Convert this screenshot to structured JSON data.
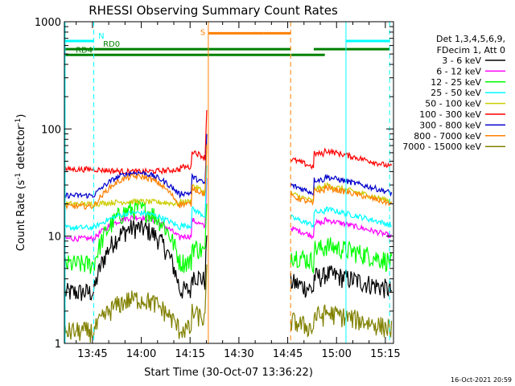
{
  "chart_data": {
    "type": "line",
    "title": "RHESSI Observing Summary Count Rates",
    "xlabel": "Start Time (30-Oct-07 13:36:22)",
    "ylabel_main": "Count Rate (s",
    "ylabel_sup1": "-1",
    "ylabel_mid": " detector",
    "ylabel_sup2": "-1",
    "ylabel_end": ")",
    "y_scale": "log",
    "ylim": [
      1,
      1000
    ],
    "xlim_minutes": [
      36.37,
      137.5
    ],
    "x_tick_labels": [
      {
        "label": "13:45",
        "minute": 45
      },
      {
        "label": "14:00",
        "minute": 60
      },
      {
        "label": "14:15",
        "minute": 75
      },
      {
        "label": "14:30",
        "minute": 90
      },
      {
        "label": "14:45",
        "minute": 105
      },
      {
        "label": "15:00",
        "minute": 120
      },
      {
        "label": "15:15",
        "minute": 135
      }
    ],
    "y_tick_labels": [
      {
        "label": "1",
        "value": 1
      },
      {
        "label": "10",
        "value": 10
      },
      {
        "label": "100",
        "value": 100
      },
      {
        "label": "1000",
        "value": 1000
      }
    ],
    "legend_header": [
      "Det 1,3,4,5,6,9,",
      "FDecim 1, Att 0"
    ],
    "legend_placement": "right",
    "timestamp": "16-Oct-2021 20:59",
    "series": [
      {
        "name": "3 - 6 keV",
        "color": "#000000",
        "base": 3.0,
        "peak": 12.0
      },
      {
        "name": "6 - 12 keV",
        "color": "#ff00ff",
        "base": 9.5,
        "peak": 15.0
      },
      {
        "name": "12 - 25 keV",
        "color": "#00ff00",
        "base": 5.5,
        "peak": 18.0
      },
      {
        "name": "25 - 50 keV",
        "color": "#00ffff",
        "base": 12.0,
        "peak": 16.5
      },
      {
        "name": "50 - 100 keV",
        "color": "#cccc00",
        "base": 20.0,
        "peak": 21.0
      },
      {
        "name": "100 - 300 keV",
        "color": "#ff0000",
        "base": 42.0,
        "peak": 40.0
      },
      {
        "name": "300 - 800 keV",
        "color": "#0000cc",
        "base": 24.0,
        "peak": 39.0
      },
      {
        "name": "800 - 7000 keV",
        "color": "#ff8000",
        "base": 19.0,
        "peak": 36.0
      },
      {
        "name": "7000 - 15000 keV",
        "color": "#808000",
        "base": 1.3,
        "peak": 2.6
      }
    ],
    "state_bars": [
      {
        "label": "N",
        "color": "#00ffff",
        "value": 660,
        "segments": [
          [
            36.4,
            45.3
          ],
          [
            122.9,
            136.3
          ]
        ]
      },
      {
        "label": "S",
        "color": "#ff8000",
        "value": 780,
        "segments": [
          [
            80.6,
            97.6
          ],
          [
            97.6,
            105.9
          ]
        ]
      },
      {
        "label": "RD0",
        "color": "#008000",
        "value": 555,
        "segments": [
          [
            36.4,
            105.9
          ],
          [
            113.0,
            136.3
          ]
        ]
      },
      {
        "label": "RD4",
        "color": "#008000",
        "value": 490,
        "segments": [
          [
            36.4,
            105.9
          ],
          [
            106.1,
            116.4
          ]
        ]
      }
    ],
    "marker_lines": [
      {
        "name": "night-start",
        "color": "#00ffff",
        "minute": 36.6,
        "style": "solid"
      },
      {
        "name": "night-end",
        "color": "#00ffff",
        "minute": 45.4,
        "style": "dashed"
      },
      {
        "name": "saa-start",
        "color": "#ff8000",
        "minute": 80.6,
        "style": "solid"
      },
      {
        "name": "saa-end",
        "color": "#ff8000",
        "minute": 105.9,
        "style": "dashed"
      },
      {
        "name": "night2-start",
        "color": "#00ffff",
        "minute": 122.9,
        "style": "solid"
      },
      {
        "name": "night2-end",
        "color": "#00ffff",
        "minute": 136.3,
        "style": "dashed"
      }
    ]
  }
}
